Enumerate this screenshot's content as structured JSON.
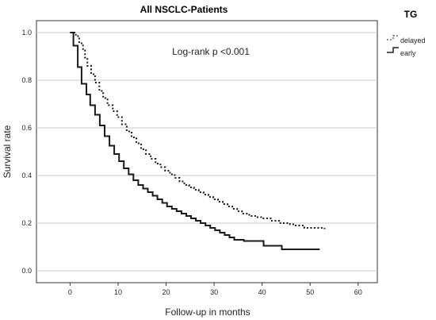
{
  "chart_data": {
    "type": "line",
    "title": "All NSCLC-Patients",
    "xlabel": "Follow-up in months",
    "ylabel": "Survival rate",
    "xlim": [
      -7,
      64
    ],
    "ylim": [
      -0.05,
      1.05
    ],
    "xticks": [
      "0",
      "10",
      "20",
      "30",
      "40",
      "50",
      "60"
    ],
    "yticks": [
      "0.0",
      "0.2",
      "0.4",
      "0.6",
      "0.8",
      "1.0"
    ],
    "grid": "horizontal",
    "annotation": "Log-rank p <0.001",
    "legend": {
      "title": "TG",
      "position": "top-right",
      "entries": [
        "delayed",
        "early"
      ]
    },
    "series": [
      {
        "name": "delayed",
        "style": "dotted",
        "x": [
          0,
          1.2,
          1.9,
          2.7,
          3.1,
          3.6,
          4.4,
          5.2,
          6.1,
          6.9,
          7.8,
          8.9,
          9.8,
          10.8,
          11.8,
          12.8,
          13.8,
          14.8,
          15.8,
          16.8,
          17.8,
          18.8,
          19.8,
          20.8,
          21.8,
          22.8,
          23.8,
          24.8,
          25.8,
          26.8,
          27.8,
          28.8,
          29.8,
          30.8,
          31.8,
          32.8,
          33.8,
          34.8,
          35.8,
          36.8,
          37.8,
          38.8,
          39.8,
          41.8,
          43.8,
          45.8,
          46.8,
          48.8,
          53.0
        ],
        "y": [
          1.0,
          0.985,
          0.955,
          0.925,
          0.895,
          0.86,
          0.825,
          0.79,
          0.755,
          0.725,
          0.695,
          0.67,
          0.645,
          0.615,
          0.585,
          0.56,
          0.535,
          0.51,
          0.49,
          0.47,
          0.45,
          0.435,
          0.42,
          0.405,
          0.39,
          0.375,
          0.36,
          0.35,
          0.34,
          0.33,
          0.32,
          0.31,
          0.3,
          0.29,
          0.28,
          0.27,
          0.26,
          0.25,
          0.24,
          0.235,
          0.23,
          0.225,
          0.22,
          0.21,
          0.2,
          0.195,
          0.19,
          0.18,
          0.175
        ]
      },
      {
        "name": "early",
        "style": "solid",
        "x": [
          0,
          0.7,
          1.6,
          2.4,
          3.4,
          4.2,
          5.2,
          6.2,
          7.2,
          8.2,
          9.2,
          10.2,
          11.2,
          12.2,
          13.2,
          14.2,
          15.2,
          16.2,
          17.2,
          18.2,
          19.2,
          20.2,
          21.2,
          22.2,
          23.2,
          24.2,
          25.2,
          26.2,
          27.2,
          28.2,
          29.2,
          30.2,
          31.2,
          32.2,
          33.2,
          34.2,
          36.2,
          40.3,
          44.1,
          52.0
        ],
        "y": [
          1.0,
          0.945,
          0.855,
          0.785,
          0.74,
          0.695,
          0.655,
          0.61,
          0.565,
          0.525,
          0.49,
          0.46,
          0.43,
          0.405,
          0.38,
          0.36,
          0.345,
          0.33,
          0.315,
          0.3,
          0.285,
          0.27,
          0.26,
          0.25,
          0.24,
          0.23,
          0.22,
          0.21,
          0.2,
          0.19,
          0.18,
          0.17,
          0.16,
          0.15,
          0.14,
          0.13,
          0.125,
          0.105,
          0.09,
          0.09
        ]
      }
    ]
  }
}
